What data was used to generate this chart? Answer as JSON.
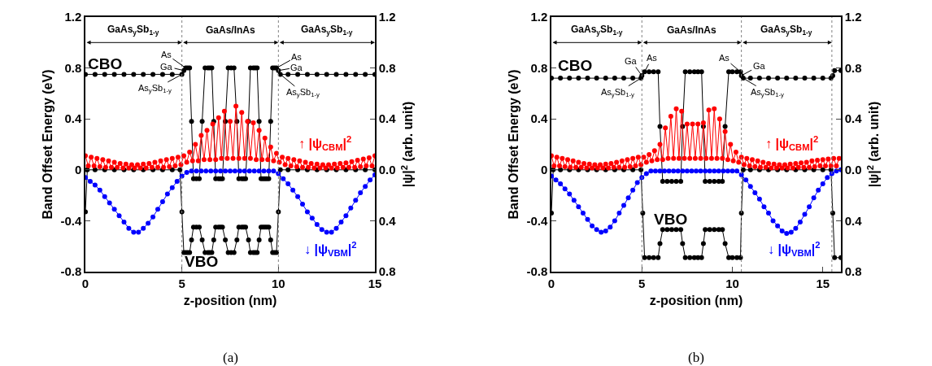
{
  "chart_data": [
    {
      "type": "line",
      "marker": "circle",
      "xlabel": "z-position (nm)",
      "ylabel": "Band Offset Energy (eV)",
      "y2label": "|ψ|$^{2}$ (arb. unit)",
      "xlim": [
        0,
        15
      ],
      "xticks": [
        0,
        5,
        10,
        15
      ],
      "ylim": [
        -0.8,
        1.2
      ],
      "yticks": [
        -0.8,
        -0.4,
        0,
        0.4,
        0.8,
        1.2
      ],
      "y2lim": [
        -0.8,
        1.2
      ],
      "y2ticks": [
        {
          "value": -0.8,
          "label": "0.8"
        },
        {
          "value": -0.4,
          "label": "0.4"
        },
        {
          "value": 0,
          "label": "0.0"
        },
        {
          "value": 0.4,
          "label": "0.4"
        },
        {
          "value": 0.8,
          "label": "0.8"
        },
        {
          "value": 1.2,
          "label": "1.2"
        }
      ],
      "series": [
        {
          "color": "#ff0000",
          "axis": "y2",
          "x": [
            0,
            0.15,
            0.3,
            0.45,
            0.6,
            0.75,
            0.9,
            1.05,
            1.2,
            1.35,
            1.5,
            1.65,
            1.8,
            1.95,
            2.1,
            2.25,
            2.4,
            2.55,
            2.7,
            2.85,
            3,
            3.15,
            3.3,
            3.45,
            3.6,
            3.75,
            3.9,
            4.05,
            4.2,
            4.35,
            4.5,
            4.65,
            4.8,
            4.95,
            5.1,
            5.25,
            5.4,
            5.55,
            5.7,
            5.85,
            6,
            6.15,
            6.3,
            6.45,
            6.6,
            6.75,
            6.9,
            7.05,
            7.2,
            7.35,
            7.5,
            7.65,
            7.8,
            7.95,
            8.1,
            8.25,
            8.4,
            8.55,
            8.7,
            8.85,
            9,
            9.15,
            9.3,
            9.45,
            9.6,
            9.75,
            9.9,
            10.05,
            10.2,
            10.35,
            10.5,
            10.65,
            10.8,
            10.95,
            11.1,
            11.25,
            11.4,
            11.55,
            11.7,
            11.85,
            12,
            12.15,
            12.3,
            12.45,
            12.6,
            12.75,
            12.9,
            13.05,
            13.2,
            13.35,
            13.5,
            13.65,
            13.8,
            13.95,
            14.1,
            14.25,
            14.4,
            14.55,
            14.7,
            14.85,
            15
          ],
          "values": [
            0.11,
            0.03,
            0.1,
            0.03,
            0.09,
            0.025,
            0.08,
            0.02,
            0.07,
            0.02,
            0.06,
            0.02,
            0.05,
            0.015,
            0.045,
            0.015,
            0.04,
            0.015,
            0.04,
            0.015,
            0.045,
            0.015,
            0.05,
            0.02,
            0.06,
            0.02,
            0.07,
            0.02,
            0.08,
            0.025,
            0.09,
            0.03,
            0.1,
            0.04,
            0.11,
            0.06,
            0.14,
            0.07,
            0.2,
            0.07,
            0.27,
            0.08,
            0.31,
            0.08,
            0.36,
            0.08,
            0.41,
            0.09,
            0.46,
            0.09,
            0.38,
            0.09,
            0.5,
            0.09,
            0.45,
            0.09,
            0.38,
            0.09,
            0.37,
            0.08,
            0.31,
            0.08,
            0.25,
            0.08,
            0.18,
            0.07,
            0.13,
            0.06,
            0.1,
            0.04,
            0.09,
            0.03,
            0.08,
            0.025,
            0.07,
            0.02,
            0.06,
            0.02,
            0.05,
            0.015,
            0.045,
            0.015,
            0.04,
            0.015,
            0.04,
            0.015,
            0.045,
            0.015,
            0.05,
            0.02,
            0.055,
            0.02,
            0.065,
            0.02,
            0.075,
            0.025,
            0.085,
            0.03,
            0.095,
            0.03,
            0.11
          ]
        },
        {
          "color": "#0000ff",
          "axis": "y2",
          "x": [
            0,
            0.25,
            0.5,
            0.75,
            1,
            1.25,
            1.5,
            1.75,
            2,
            2.25,
            2.5,
            2.75,
            3,
            3.25,
            3.5,
            3.75,
            4,
            4.25,
            4.5,
            4.75,
            5,
            5.25,
            5.5,
            5.75,
            6,
            6.25,
            6.5,
            6.75,
            7,
            7.25,
            7.5,
            7.75,
            8,
            8.25,
            8.5,
            8.75,
            9,
            9.25,
            9.5,
            9.75,
            10,
            10.25,
            10.5,
            10.75,
            11,
            11.25,
            11.5,
            11.75,
            12,
            12.25,
            12.5,
            12.75,
            13,
            13.25,
            13.5,
            13.75,
            14,
            14.25,
            14.5,
            14.75,
            15
          ],
          "values": [
            -0.06,
            -0.09,
            -0.12,
            -0.16,
            -0.21,
            -0.26,
            -0.31,
            -0.36,
            -0.41,
            -0.46,
            -0.49,
            -0.49,
            -0.46,
            -0.42,
            -0.37,
            -0.31,
            -0.25,
            -0.19,
            -0.14,
            -0.09,
            -0.05,
            -0.02,
            -0.01,
            -0.01,
            -0.01,
            -0.01,
            -0.01,
            -0.01,
            -0.01,
            -0.01,
            -0.01,
            -0.01,
            -0.01,
            -0.01,
            -0.01,
            -0.01,
            -0.01,
            -0.01,
            -0.01,
            -0.01,
            -0.03,
            -0.07,
            -0.11,
            -0.16,
            -0.21,
            -0.27,
            -0.33,
            -0.38,
            -0.43,
            -0.47,
            -0.49,
            -0.49,
            -0.46,
            -0.41,
            -0.36,
            -0.3,
            -0.24,
            -0.18,
            -0.13,
            -0.08,
            -0.04
          ]
        },
        {
          "color": "#000000",
          "x": [
            0,
            0.5,
            1,
            1.5,
            2,
            2.5,
            3,
            3.5,
            4,
            4.5,
            5,
            5.1,
            5.2,
            5.3,
            5.4,
            5.5,
            5.6,
            5.75,
            5.9,
            6.05,
            6.2,
            6.35,
            6.45,
            6.55,
            6.65,
            6.75,
            6.9,
            7.0,
            7.1,
            7.25,
            7.4,
            7.55,
            7.7,
            7.85,
            7.95,
            8.1,
            8.2,
            8.3,
            8.45,
            8.55,
            8.7,
            8.8,
            8.9,
            9.0,
            9.1,
            9.2,
            9.3,
            9.4,
            9.5,
            9.6,
            9.7,
            9.8,
            9.9,
            10,
            10.1,
            10.5,
            11,
            11.5,
            12,
            12.5,
            13,
            13.5,
            14,
            14.5,
            15
          ],
          "values": [
            0.75,
            0.75,
            0.75,
            0.75,
            0.75,
            0.75,
            0.75,
            0.75,
            0.75,
            0.75,
            0.75,
            0.78,
            0.8,
            0.8,
            0.8,
            0.38,
            -0.07,
            -0.07,
            -0.07,
            0.38,
            0.8,
            0.8,
            0.8,
            0.8,
            0.38,
            -0.07,
            -0.07,
            -0.07,
            -0.07,
            0.38,
            0.8,
            0.8,
            0.8,
            0.38,
            -0.07,
            -0.07,
            -0.07,
            -0.07,
            0.38,
            0.8,
            0.8,
            0.8,
            0.8,
            0.38,
            -0.07,
            -0.07,
            -0.07,
            -0.07,
            -0.07,
            0.38,
            0.8,
            0.8,
            0.8,
            0.78,
            0.75,
            0.75,
            0.75,
            0.75,
            0.75,
            0.75,
            0.75,
            0.75,
            0.75,
            0.75,
            0.75
          ]
        },
        {
          "color": "#000000",
          "x": [
            0,
            0.1,
            0.5,
            1,
            1.5,
            2,
            2.5,
            3,
            3.5,
            4,
            4.5,
            4.9,
            5.0,
            5.1,
            5.2,
            5.3,
            5.4,
            5.5,
            5.6,
            5.75,
            5.9,
            6.05,
            6.2,
            6.35,
            6.45,
            6.55,
            6.65,
            6.75,
            6.9,
            7.0,
            7.1,
            7.25,
            7.4,
            7.55,
            7.7,
            7.85,
            7.95,
            8.1,
            8.2,
            8.3,
            8.45,
            8.55,
            8.7,
            8.8,
            8.9,
            9.0,
            9.1,
            9.2,
            9.3,
            9.4,
            9.5,
            9.6,
            9.7,
            9.8,
            9.9,
            10,
            10.1,
            10.5,
            11,
            11.5,
            12,
            12.5,
            13,
            13.5,
            14,
            14.5,
            15
          ],
          "values": [
            -0.33,
            0,
            0,
            0,
            0,
            0,
            0,
            0,
            0,
            0,
            0,
            0,
            -0.33,
            -0.65,
            -0.65,
            -0.65,
            -0.65,
            -0.55,
            -0.45,
            -0.45,
            -0.45,
            -0.55,
            -0.65,
            -0.65,
            -0.65,
            -0.65,
            -0.55,
            -0.45,
            -0.45,
            -0.45,
            -0.45,
            -0.55,
            -0.65,
            -0.65,
            -0.65,
            -0.55,
            -0.45,
            -0.45,
            -0.45,
            -0.45,
            -0.55,
            -0.65,
            -0.65,
            -0.65,
            -0.65,
            -0.55,
            -0.45,
            -0.45,
            -0.45,
            -0.45,
            -0.45,
            -0.55,
            -0.65,
            -0.65,
            -0.65,
            -0.33,
            0,
            0,
            0,
            0,
            0,
            0,
            0,
            0,
            0,
            0,
            0
          ]
        }
      ],
      "ref_lines": [
        {
          "axis": "x",
          "value": 5,
          "color": "#808080",
          "line_style": "dotted"
        },
        {
          "axis": "x",
          "value": 10,
          "color": "#808080",
          "line_style": "dotted"
        }
      ],
      "annotations": [
        "GaAs$_{y}$Sb$_{1-y}$",
        "GaAs/InAs",
        "GaAs$_{y}$Sb$_{1-y}$",
        "CBO",
        "VBO",
        "↑ |ψ$_{CBM}$|$^{2}$",
        "↓ |ψ$_{VBM}$|$^{2}$",
        {
          "text": "As",
          "x": 5.2,
          "y": 0.8
        },
        {
          "text": "Ga",
          "x": 5.1,
          "y": 0.78
        },
        {
          "text": "As$_{y}$Sb$_{1-y}$",
          "x": 5.0,
          "y": 0.75
        },
        {
          "text": "As",
          "x": 9.9,
          "y": 0.8
        },
        {
          "text": "Ga",
          "x": 10.0,
          "y": 0.78
        },
        {
          "text": "As$_{y}$Sb$_{1-y}$",
          "x": 10.1,
          "y": 0.75
        },
        "(a)"
      ]
    },
    {
      "type": "line",
      "marker": "circle",
      "xlabel": "z-position (nm)",
      "ylabel": "Band Offset Energy (eV)",
      "y2label": "|ψ|$^{2}$ (arb. unit)",
      "xlim": [
        0,
        16
      ],
      "xticks": [
        0,
        5,
        10,
        15
      ],
      "ylim": [
        -0.8,
        1.2
      ],
      "yticks": [
        -0.8,
        -0.4,
        0,
        0.4,
        0.8,
        1.2
      ],
      "y2lim": [
        -0.8,
        1.2
      ],
      "y2ticks": [
        {
          "value": -0.8,
          "label": "0.8"
        },
        {
          "value": -0.4,
          "label": "0.4"
        },
        {
          "value": 0,
          "label": "0.0"
        },
        {
          "value": 0.4,
          "label": "0.4"
        },
        {
          "value": 0.8,
          "label": "0.8"
        },
        {
          "value": 1.2,
          "label": "1.2"
        }
      ],
      "series": [
        {
          "color": "#ff0000",
          "axis": "y2",
          "x": [
            0,
            0.15,
            0.3,
            0.45,
            0.6,
            0.75,
            0.9,
            1.05,
            1.2,
            1.35,
            1.5,
            1.65,
            1.8,
            1.95,
            2.1,
            2.25,
            2.4,
            2.55,
            2.7,
            2.85,
            3,
            3.15,
            3.3,
            3.45,
            3.6,
            3.75,
            3.9,
            4.05,
            4.2,
            4.35,
            4.5,
            4.65,
            4.8,
            4.95,
            5.1,
            5.25,
            5.4,
            5.55,
            5.7,
            5.85,
            6,
            6.15,
            6.3,
            6.45,
            6.6,
            6.75,
            6.9,
            7.05,
            7.2,
            7.35,
            7.5,
            7.65,
            7.8,
            7.95,
            8.1,
            8.25,
            8.4,
            8.55,
            8.7,
            8.85,
            9,
            9.15,
            9.3,
            9.45,
            9.6,
            9.75,
            9.9,
            10.05,
            10.2,
            10.35,
            10.5,
            10.65,
            10.8,
            10.95,
            11.1,
            11.25,
            11.4,
            11.55,
            11.7,
            11.85,
            12,
            12.15,
            12.3,
            12.45,
            12.6,
            12.75,
            12.9,
            13.05,
            13.2,
            13.35,
            13.5,
            13.65,
            13.8,
            13.95,
            14.1,
            14.25,
            14.4,
            14.55,
            14.7,
            14.85,
            15,
            15.15,
            15.3,
            15.45,
            15.6,
            15.75,
            15.9
          ],
          "values": [
            0.11,
            0.03,
            0.1,
            0.03,
            0.09,
            0.025,
            0.08,
            0.02,
            0.07,
            0.02,
            0.06,
            0.02,
            0.05,
            0.015,
            0.045,
            0.015,
            0.04,
            0.015,
            0.04,
            0.015,
            0.045,
            0.015,
            0.05,
            0.02,
            0.06,
            0.02,
            0.07,
            0.02,
            0.08,
            0.025,
            0.09,
            0.03,
            0.1,
            0.04,
            0.1,
            0.06,
            0.12,
            0.07,
            0.15,
            0.08,
            0.2,
            0.08,
            0.33,
            0.09,
            0.42,
            0.09,
            0.48,
            0.09,
            0.46,
            0.09,
            0.36,
            0.09,
            0.36,
            0.09,
            0.36,
            0.09,
            0.37,
            0.09,
            0.47,
            0.09,
            0.48,
            0.09,
            0.4,
            0.09,
            0.3,
            0.08,
            0.2,
            0.07,
            0.14,
            0.06,
            0.1,
            0.04,
            0.09,
            0.03,
            0.08,
            0.025,
            0.07,
            0.02,
            0.06,
            0.02,
            0.05,
            0.015,
            0.045,
            0.015,
            0.04,
            0.015,
            0.04,
            0.015,
            0.045,
            0.015,
            0.05,
            0.02,
            0.055,
            0.02,
            0.06,
            0.02,
            0.07,
            0.025,
            0.075,
            0.03,
            0.08,
            0.03,
            0.085,
            0.03,
            0.09,
            0.03,
            0.09
          ]
        },
        {
          "color": "#0000ff",
          "axis": "y2",
          "x": [
            0,
            0.25,
            0.5,
            0.75,
            1,
            1.25,
            1.5,
            1.75,
            2,
            2.25,
            2.5,
            2.75,
            3,
            3.25,
            3.5,
            3.75,
            4,
            4.25,
            4.5,
            4.75,
            5,
            5.25,
            5.5,
            5.75,
            6,
            6.25,
            6.5,
            6.75,
            7,
            7.25,
            7.5,
            7.75,
            8,
            8.25,
            8.5,
            8.75,
            9,
            9.25,
            9.5,
            9.75,
            10,
            10.25,
            10.5,
            10.75,
            11,
            11.25,
            11.5,
            11.75,
            12,
            12.25,
            12.5,
            12.75,
            13,
            13.25,
            13.5,
            13.75,
            14,
            14.25,
            14.5,
            14.75,
            15,
            15.25,
            15.5,
            15.75,
            16
          ],
          "values": [
            -0.05,
            -0.08,
            -0.11,
            -0.15,
            -0.19,
            -0.24,
            -0.29,
            -0.34,
            -0.39,
            -0.44,
            -0.47,
            -0.49,
            -0.48,
            -0.45,
            -0.4,
            -0.34,
            -0.28,
            -0.22,
            -0.16,
            -0.1,
            -0.06,
            -0.03,
            -0.01,
            -0.01,
            -0.01,
            -0.01,
            -0.01,
            -0.01,
            -0.01,
            -0.01,
            -0.01,
            -0.01,
            -0.01,
            -0.01,
            -0.01,
            -0.01,
            -0.01,
            -0.01,
            -0.01,
            -0.01,
            -0.01,
            -0.01,
            -0.04,
            -0.08,
            -0.13,
            -0.18,
            -0.23,
            -0.29,
            -0.34,
            -0.4,
            -0.44,
            -0.48,
            -0.5,
            -0.49,
            -0.46,
            -0.41,
            -0.35,
            -0.29,
            -0.22,
            -0.16,
            -0.11,
            -0.06,
            -0.03,
            -0.01,
            0
          ]
        },
        {
          "color": "#000000",
          "x": [
            0,
            0.5,
            1,
            1.5,
            2,
            2.5,
            3,
            3.5,
            4,
            4.5,
            4.95,
            5.0,
            5.15,
            5.4,
            5.65,
            5.9,
            6.0,
            6.15,
            6.4,
            6.65,
            6.9,
            7.15,
            7.25,
            7.4,
            7.65,
            7.9,
            8.1,
            8.3,
            8.4,
            8.5,
            8.75,
            9.0,
            9.25,
            9.45,
            9.6,
            9.8,
            10.0,
            10.25,
            10.45,
            10.5,
            10.6,
            11,
            11.5,
            12,
            12.5,
            13,
            13.5,
            14,
            14.5,
            15,
            15.45,
            15.55,
            15.65,
            16
          ],
          "values": [
            0.72,
            0.72,
            0.72,
            0.72,
            0.72,
            0.72,
            0.72,
            0.72,
            0.72,
            0.72,
            0.72,
            0.74,
            0.77,
            0.77,
            0.77,
            0.77,
            0.34,
            -0.09,
            -0.09,
            -0.09,
            -0.09,
            -0.09,
            0.34,
            0.77,
            0.77,
            0.77,
            0.77,
            0.77,
            0.34,
            -0.09,
            -0.09,
            -0.09,
            -0.09,
            -0.09,
            0.34,
            0.77,
            0.77,
            0.77,
            0.77,
            0.74,
            0.72,
            0.72,
            0.72,
            0.72,
            0.72,
            0.72,
            0.72,
            0.72,
            0.72,
            0.72,
            0.72,
            0.74,
            0.78,
            0.78
          ]
        },
        {
          "color": "#000000",
          "x": [
            0,
            0.1,
            0.5,
            1,
            1.5,
            2,
            2.5,
            3,
            3.5,
            4,
            4.5,
            4.95,
            5.05,
            5.15,
            5.4,
            5.65,
            5.9,
            6.0,
            6.15,
            6.4,
            6.65,
            6.9,
            7.15,
            7.25,
            7.4,
            7.65,
            7.9,
            8.1,
            8.3,
            8.4,
            8.5,
            8.75,
            9.0,
            9.25,
            9.45,
            9.6,
            9.8,
            10.0,
            10.25,
            10.45,
            10.5,
            10.6,
            11,
            11.5,
            12,
            12.5,
            13,
            13.5,
            14,
            14.5,
            15,
            15.45,
            15.55,
            15.65,
            16
          ],
          "values": [
            -0.34,
            0,
            0,
            0,
            0,
            0,
            0,
            0,
            0,
            0,
            0,
            0,
            -0.34,
            -0.69,
            -0.69,
            -0.69,
            -0.69,
            -0.58,
            -0.47,
            -0.47,
            -0.47,
            -0.47,
            -0.47,
            -0.58,
            -0.69,
            -0.69,
            -0.69,
            -0.69,
            -0.69,
            -0.58,
            -0.47,
            -0.47,
            -0.47,
            -0.47,
            -0.47,
            -0.58,
            -0.69,
            -0.69,
            -0.69,
            -0.69,
            -0.34,
            0,
            0,
            0,
            0,
            0,
            0,
            0,
            0,
            0,
            0,
            0,
            -0.34,
            -0.69,
            -0.69
          ]
        }
      ],
      "ref_lines": [
        {
          "axis": "x",
          "value": 5,
          "color": "#808080",
          "line_style": "dotted"
        },
        {
          "axis": "x",
          "value": 10.5,
          "color": "#808080",
          "line_style": "dotted"
        },
        {
          "axis": "x",
          "value": 15.5,
          "color": "#808080",
          "line_style": "dotted"
        }
      ],
      "annotations": [
        "GaAs$_{y}$Sb$_{1-y}$",
        "GaAs/InAs",
        "GaAs$_{y}$Sb$_{1-y}$",
        "CBO",
        "VBO",
        "↑ |ψ$_{CBM}$|$^{2}$",
        "↓ |ψ$_{VBM}$|$^{2}$",
        {
          "text": "Ga",
          "x": 5.0,
          "y": 0.74
        },
        {
          "text": "As",
          "x": 5.15,
          "y": 0.77
        },
        {
          "text": "As$_{y}$Sb$_{1-y}$",
          "x": 4.95,
          "y": 0.72
        },
        {
          "text": "As",
          "x": 10.45,
          "y": 0.77
        },
        {
          "text": "Ga",
          "x": 10.5,
          "y": 0.74
        },
        {
          "text": "As$_{y}$Sb$_{1-y}$",
          "x": 10.6,
          "y": 0.72
        },
        "(b)"
      ]
    }
  ]
}
